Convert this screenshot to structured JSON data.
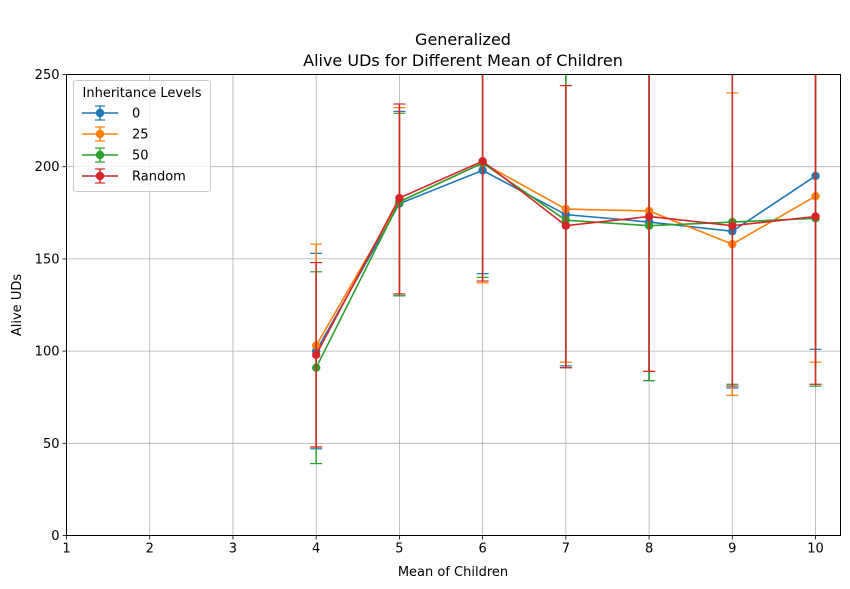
{
  "chart_data": {
    "type": "line",
    "title": "Generalized",
    "subtitle": "Alive UDs for Different Mean of Children",
    "xlabel": "Mean of Children",
    "ylabel": "Alive UDs",
    "xlim": [
      1,
      10.3
    ],
    "ylim": [
      0,
      250
    ],
    "xticks": [
      "1",
      "2",
      "3",
      "4",
      "5",
      "6",
      "7",
      "8",
      "9",
      "10"
    ],
    "yticks": [
      "0",
      "50",
      "100",
      "150",
      "200",
      "250"
    ],
    "grid": true,
    "legend": {
      "title": "Inheritance Levels",
      "placement": "top-left"
    },
    "x": [
      4,
      5,
      6,
      7,
      8,
      9,
      10
    ],
    "series": [
      {
        "name": "0",
        "color": "#1f77b4",
        "values": [
          100,
          180,
          198,
          174,
          170,
          165,
          195
        ],
        "err_low": [
          47,
          130,
          142,
          92,
          84,
          80,
          101
        ],
        "err_high": [
          153,
          230,
          254,
          256,
          256,
          250,
          289
        ]
      },
      {
        "name": "25",
        "color": "#ff7f0e",
        "values": [
          103,
          181,
          202,
          177,
          176,
          158,
          184
        ],
        "err_low": [
          48,
          131,
          137,
          94,
          89,
          76,
          94
        ],
        "err_high": [
          158,
          232,
          267,
          244,
          263,
          240,
          274
        ]
      },
      {
        "name": "50",
        "color": "#2ca02c",
        "values": [
          91,
          181,
          202,
          171,
          168,
          170,
          172
        ],
        "err_low": [
          39,
          130,
          140,
          91,
          84,
          82,
          81
        ],
        "err_high": [
          143,
          229,
          264,
          251,
          252,
          258,
          263
        ]
      },
      {
        "name": "Random",
        "color": "#d62728",
        "values": [
          98,
          183,
          203,
          168,
          173,
          168,
          173
        ],
        "err_low": [
          48,
          131,
          138,
          91,
          89,
          81,
          82
        ],
        "err_high": [
          148,
          234,
          268,
          244,
          257,
          255,
          264
        ]
      }
    ]
  }
}
